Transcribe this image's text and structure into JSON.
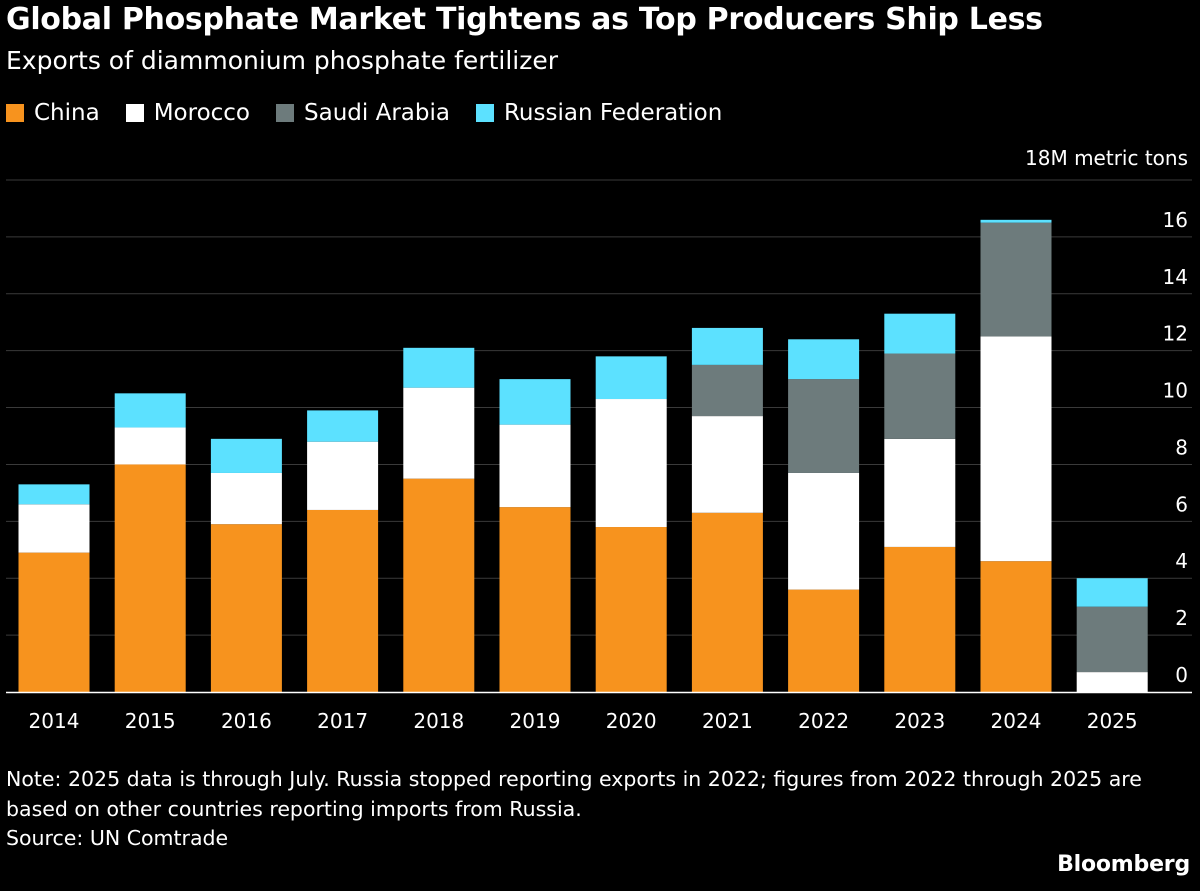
{
  "header": {
    "title": "Global Phosphate Market Tightens as Top Producers Ship Less",
    "subtitle": "Exports of diammonium phosphate fertilizer"
  },
  "legend": [
    {
      "label": "China",
      "color": "#f7931e"
    },
    {
      "label": "Morocco",
      "color": "#ffffff"
    },
    {
      "label": "Saudi Arabia",
      "color": "#6d7b7c"
    },
    {
      "label": "Russian Federation",
      "color": "#5ce1ff"
    }
  ],
  "chart_data": {
    "type": "bar",
    "stacked": true,
    "categories": [
      "2014",
      "2015",
      "2016",
      "2017",
      "2018",
      "2019",
      "2020",
      "2021",
      "2022",
      "2023",
      "2024",
      "2025"
    ],
    "series": [
      {
        "name": "China",
        "color": "#f7931e",
        "values": [
          4.9,
          8.0,
          5.9,
          6.4,
          7.5,
          6.5,
          5.8,
          6.3,
          3.6,
          5.1,
          4.6,
          0
        ]
      },
      {
        "name": "Morocco",
        "color": "#ffffff",
        "values": [
          1.7,
          1.3,
          1.8,
          2.4,
          3.2,
          2.9,
          4.5,
          3.4,
          4.1,
          3.8,
          7.9,
          0.7
        ]
      },
      {
        "name": "Saudi Arabia",
        "color": "#6d7b7c",
        "values": [
          0,
          0,
          0,
          0,
          0,
          0,
          0,
          1.8,
          3.3,
          3.0,
          4.0,
          2.3
        ]
      },
      {
        "name": "Russian Federation",
        "color": "#5ce1ff",
        "values": [
          0.7,
          1.2,
          1.2,
          1.1,
          1.4,
          1.6,
          1.5,
          1.3,
          1.4,
          1.4,
          0.1,
          1.0
        ]
      }
    ],
    "unit_label": "18M metric tons",
    "y_ticks": [
      0,
      2,
      4,
      6,
      8,
      10,
      12,
      14,
      16
    ],
    "ylim": [
      0,
      18
    ],
    "grid": true,
    "legend_position": "top-left"
  },
  "footer": {
    "note": "Note: 2025 data is through July. Russia stopped reporting exports in 2022; figures from 2022 through 2025 are based on other countries reporting imports from Russia.",
    "source": "Source: UN Comtrade",
    "logo": "Bloomberg"
  }
}
